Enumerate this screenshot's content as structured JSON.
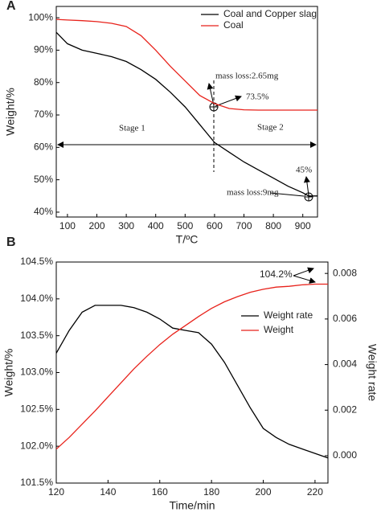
{
  "chart_data": [
    {
      "type": "line",
      "panel_label": "A",
      "x_label": "T/ºC",
      "y_label": "Weight/%",
      "xlim": [
        62,
        950
      ],
      "xticks": [
        100,
        200,
        300,
        400,
        500,
        600,
        700,
        800,
        900
      ],
      "ylim": [
        38.5,
        103.5
      ],
      "yticks": [
        {
          "value": 40,
          "label": "40%"
        },
        {
          "value": 50,
          "label": "50%"
        },
        {
          "value": 60,
          "label": "60%"
        },
        {
          "value": 70,
          "label": "70%"
        },
        {
          "value": 80,
          "label": "80%"
        },
        {
          "value": 90,
          "label": "90%"
        },
        {
          "value": 100,
          "label": "100%"
        }
      ],
      "x": [
        62,
        100,
        150,
        200,
        250,
        300,
        350,
        400,
        450,
        500,
        550,
        600,
        650,
        700,
        750,
        800,
        850,
        900,
        920,
        950
      ],
      "series": [
        {
          "name": "Coal and Copper slag",
          "color": "#000000",
          "values": [
            95.5,
            92,
            90,
            89,
            88,
            86.5,
            84,
            81,
            77,
            72.5,
            67,
            61.5,
            58.5,
            55.5,
            53,
            50.5,
            48,
            46,
            45,
            45
          ]
        },
        {
          "name": "Coal",
          "color": "#e8221b",
          "values": [
            99.5,
            99.3,
            99.1,
            98.8,
            98.3,
            97.3,
            94.5,
            90,
            85,
            80.5,
            76,
            73.5,
            72,
            71.6,
            71.5,
            71.5,
            71.5,
            71.5,
            71.5,
            71.5
          ]
        }
      ],
      "annotations": [
        "mass loss:2.65mg",
        "73.5%",
        "Stage 1",
        "Stage 2",
        "45%",
        "mass loss:9mg"
      ]
    },
    {
      "type": "line",
      "panel_label": "B",
      "x_label": "Time/min",
      "y_label": "Weight/%",
      "y2_label": "Weight rate",
      "xlim": [
        120,
        225
      ],
      "xticks": [
        120,
        140,
        160,
        180,
        200,
        220
      ],
      "ylim": [
        101.5,
        104.5
      ],
      "yticks": [
        {
          "value": 101.5,
          "label": "101.5%"
        },
        {
          "value": 102,
          "label": "102.0%"
        },
        {
          "value": 102.5,
          "label": "102.5%"
        },
        {
          "value": 103,
          "label": "103.0%"
        },
        {
          "value": 103.5,
          "label": "103.5%"
        },
        {
          "value": 104,
          "label": "104.0%"
        },
        {
          "value": 104.5,
          "label": "104.5%"
        }
      ],
      "y2lim": [
        -0.0012,
        0.0085
      ],
      "y2ticks": [
        {
          "value": 0,
          "label": "0.000"
        },
        0.002,
        0.004,
        0.006,
        0.008
      ],
      "x": [
        120,
        125,
        130,
        135,
        140,
        145,
        150,
        155,
        160,
        165,
        170,
        175,
        180,
        185,
        190,
        195,
        200,
        205,
        210,
        215,
        220,
        225
      ],
      "series": [
        {
          "name": "Weight rate",
          "color": "#000000",
          "axis": "y2",
          "values": [
            0.0045,
            0.0055,
            0.0063,
            0.0066,
            0.0066,
            0.0066,
            0.0065,
            0.0063,
            0.006,
            0.0056,
            0.0055,
            0.0054,
            0.0049,
            0.0041,
            0.0031,
            0.0021,
            0.0012,
            0.0008,
            0.0005,
            0.0003,
            0.0001,
            -0.0001
          ]
        },
        {
          "name": "Weight",
          "color": "#e8221b",
          "values": [
            101.96,
            102.12,
            102.3,
            102.48,
            102.67,
            102.86,
            103.05,
            103.22,
            103.38,
            103.52,
            103.64,
            103.76,
            103.87,
            103.96,
            104.03,
            104.09,
            104.13,
            104.16,
            104.17,
            104.19,
            104.2,
            104.2
          ]
        }
      ],
      "annotations": [
        "104.2%"
      ]
    }
  ]
}
